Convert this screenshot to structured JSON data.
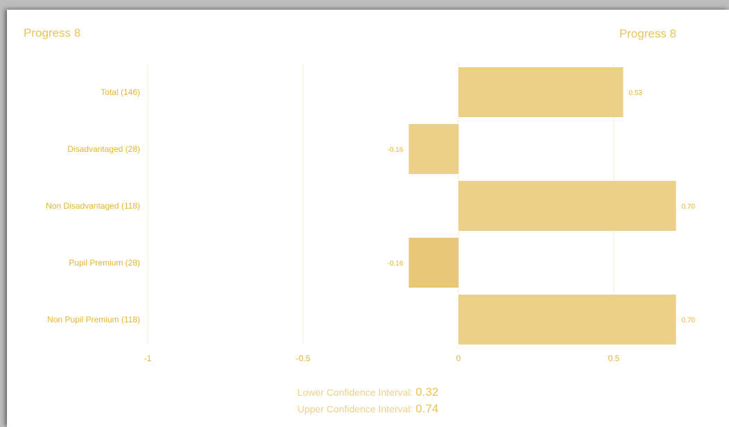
{
  "header": {
    "title_left": "Progress 8",
    "title_right": "Progress 8"
  },
  "colors": {
    "accent": "#e9c45a",
    "bar": "#ebd08a",
    "bar_highlight": "#e8c878",
    "label": "#e3b530",
    "gridline": "#f5ecd3"
  },
  "chart_data": {
    "type": "bar",
    "orientation": "horizontal",
    "categories": [
      "Total (146)",
      "Disadvantaged (28)",
      "Non Disadvantaged (118)",
      "Pupil Premium (28)",
      "Non Pupil Premium (118)"
    ],
    "values": [
      0.53,
      -0.16,
      0.7,
      -0.16,
      0.7
    ],
    "value_labels": [
      "0.53",
      "-0.16",
      "0.70",
      "-0.16",
      "0.70"
    ],
    "x_ticks": [
      -1,
      -0.5,
      0,
      0.5
    ],
    "x_tick_labels": [
      "-1",
      "-0.5",
      "0",
      "0.5"
    ],
    "xlim": [
      -1,
      0.7
    ],
    "grid": true,
    "title": "Progress 8"
  },
  "confidence": {
    "lower_label": "Lower Confidence Interval:",
    "lower_value": "0.32",
    "upper_label": "Upper Confidence Interval:",
    "upper_value": "0.74"
  }
}
